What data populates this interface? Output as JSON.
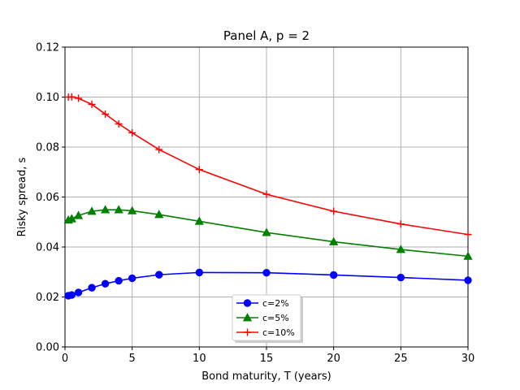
{
  "chart_data": {
    "type": "line",
    "title": "Panel A, p = 2",
    "xlabel": "Bond maturity, T (years)",
    "ylabel": "Risky spread, s",
    "xlim": [
      0,
      30
    ],
    "ylim": [
      0,
      0.12
    ],
    "xticks": [
      0,
      5,
      10,
      15,
      20,
      25,
      30
    ],
    "xtick_labels": [
      "0",
      "5",
      "10",
      "15",
      "20",
      "25",
      "30"
    ],
    "yticks": [
      0,
      0.02,
      0.04,
      0.06,
      0.08,
      0.1,
      0.12
    ],
    "ytick_labels": [
      "0.00",
      "0.02",
      "0.04",
      "0.06",
      "0.08",
      "0.10",
      "0.12"
    ],
    "grid": true,
    "legend_position": "bottom-center",
    "x": [
      0.25,
      0.5,
      1,
      2,
      3,
      4,
      5,
      7,
      10,
      15,
      20,
      25,
      30
    ],
    "series": [
      {
        "name": "c=2%",
        "color": "#0000ff",
        "marker": "circle",
        "values": [
          0.0205,
          0.0208,
          0.0218,
          0.0237,
          0.0253,
          0.0265,
          0.0275,
          0.0289,
          0.0298,
          0.0297,
          0.0288,
          0.0278,
          0.0267
        ]
      },
      {
        "name": "c=5%",
        "color": "#008000",
        "marker": "triangle",
        "values": [
          0.0508,
          0.0513,
          0.0526,
          0.0543,
          0.0549,
          0.0549,
          0.0545,
          0.053,
          0.0503,
          0.0458,
          0.0421,
          0.039,
          0.0363
        ]
      },
      {
        "name": "c=10%",
        "color": "#ff0000",
        "marker": "plus",
        "values": [
          0.1,
          0.1001,
          0.0995,
          0.0971,
          0.0932,
          0.0893,
          0.0857,
          0.079,
          0.071,
          0.0611,
          0.0543,
          0.0492,
          0.045
        ]
      }
    ]
  }
}
